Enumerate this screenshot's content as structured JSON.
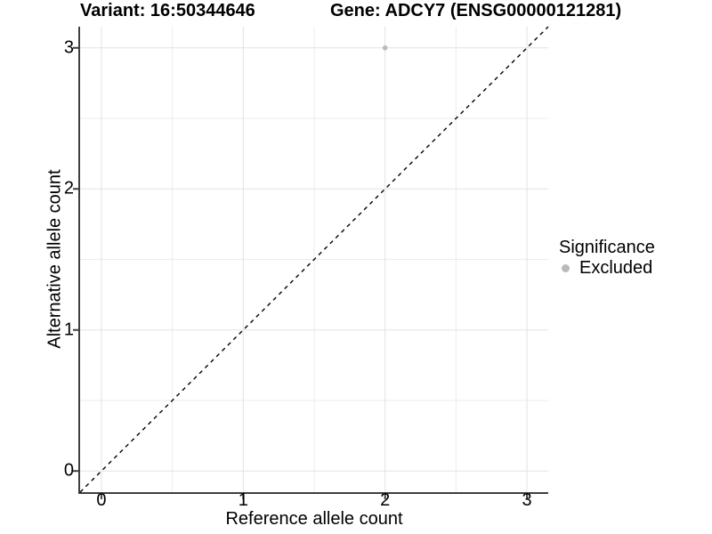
{
  "header": {
    "title_left": "Variant: 16:50344646",
    "title_right": "Gene: ADCY7 (ENSG00000121281)"
  },
  "chart_data": {
    "type": "scatter",
    "xlabel": "Reference allele count",
    "ylabel": "Alternative allele count",
    "xlim": [
      -0.15,
      3.15
    ],
    "ylim": [
      -0.15,
      3.15
    ],
    "x_ticks": [
      0,
      1,
      2,
      3
    ],
    "y_ticks": [
      0,
      1,
      2,
      3
    ],
    "x_minor_ticks": [
      0.5,
      1.5,
      2.5
    ],
    "y_minor_ticks": [
      0.5,
      1.5,
      2.5
    ],
    "grid": "major+minor",
    "points": [
      {
        "x": 2,
        "y": 3,
        "significance": "Excluded"
      }
    ],
    "reference_line": {
      "slope": 1,
      "intercept": 0,
      "style": "dashed",
      "color": "#000000"
    },
    "legend": {
      "title": "Significance",
      "position": "right",
      "items": [
        {
          "label": "Excluded",
          "color": "#bababa"
        }
      ]
    },
    "colors": {
      "point": "#bababa",
      "grid_major": "#e3e3e3",
      "grid_minor": "#ededed",
      "axis_line": "#3f3f3f",
      "text": "#000000",
      "background": "#ffffff"
    }
  }
}
